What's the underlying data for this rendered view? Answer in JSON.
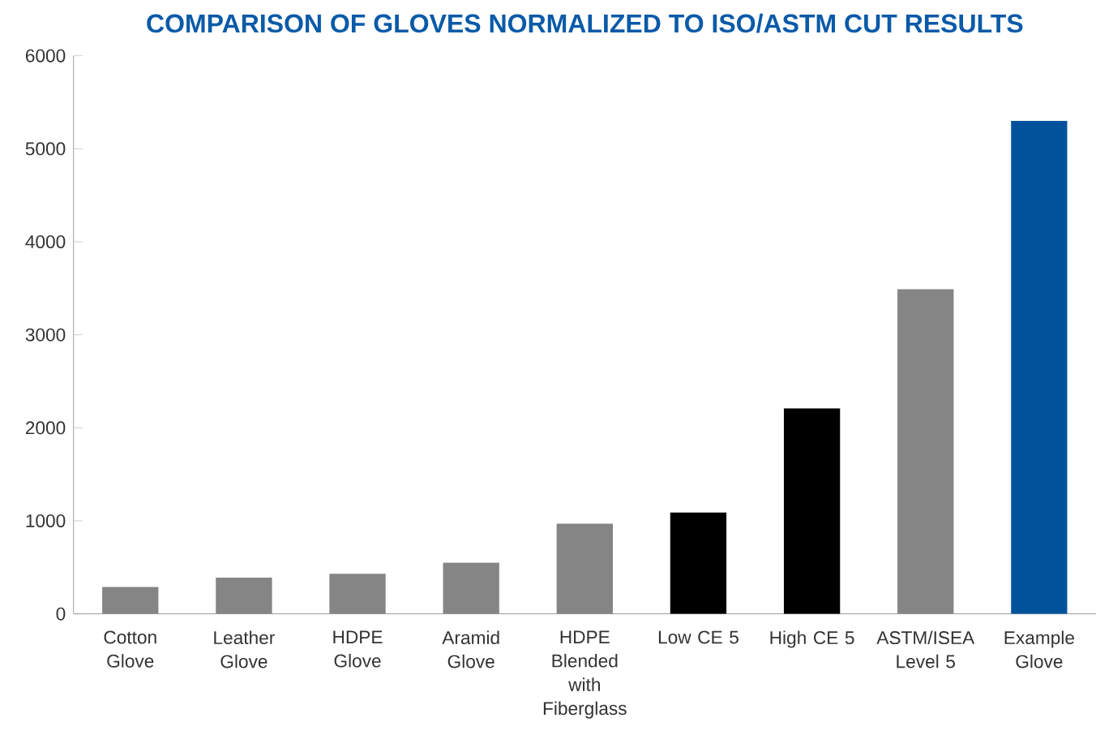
{
  "chart_data": {
    "type": "bar",
    "title": "COMPARISON OF GLOVES NORMALIZED TO ISO/ASTM CUT RESULTS",
    "categories": [
      "Cotton Glove",
      "Leather Glove",
      "HDPE Glove",
      "Aramid Glove",
      "HDPE Blended with Fiberglass",
      "Low CE 5",
      "High CE 5",
      "ASTM/ISEA Level 5",
      "Example Glove"
    ],
    "values": [
      290,
      390,
      430,
      550,
      970,
      1090,
      2210,
      3490,
      5300
    ],
    "colors": [
      "#858585",
      "#858585",
      "#858585",
      "#858585",
      "#858585",
      "#000000",
      "#000000",
      "#858585",
      "#00529b"
    ],
    "ylim": [
      0,
      6000
    ],
    "yticks": [
      0,
      1000,
      2000,
      3000,
      4000,
      5000,
      6000
    ],
    "grid": false
  }
}
